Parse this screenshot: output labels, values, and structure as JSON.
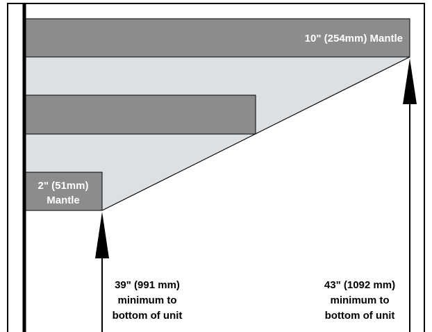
{
  "top_mantle": {
    "label": "10\" (254mm) Mantle"
  },
  "bottom_mantle": {
    "label_line1": "2\" (51mm)",
    "label_line2": "Mantle"
  },
  "left_dimension": {
    "line1": "39\" (991 mm)",
    "line2": "minimum to",
    "line3": "bottom of unit"
  },
  "right_dimension": {
    "line1": "43\" (1092 mm)",
    "line2": "minimum to",
    "line3": "bottom of unit"
  }
}
